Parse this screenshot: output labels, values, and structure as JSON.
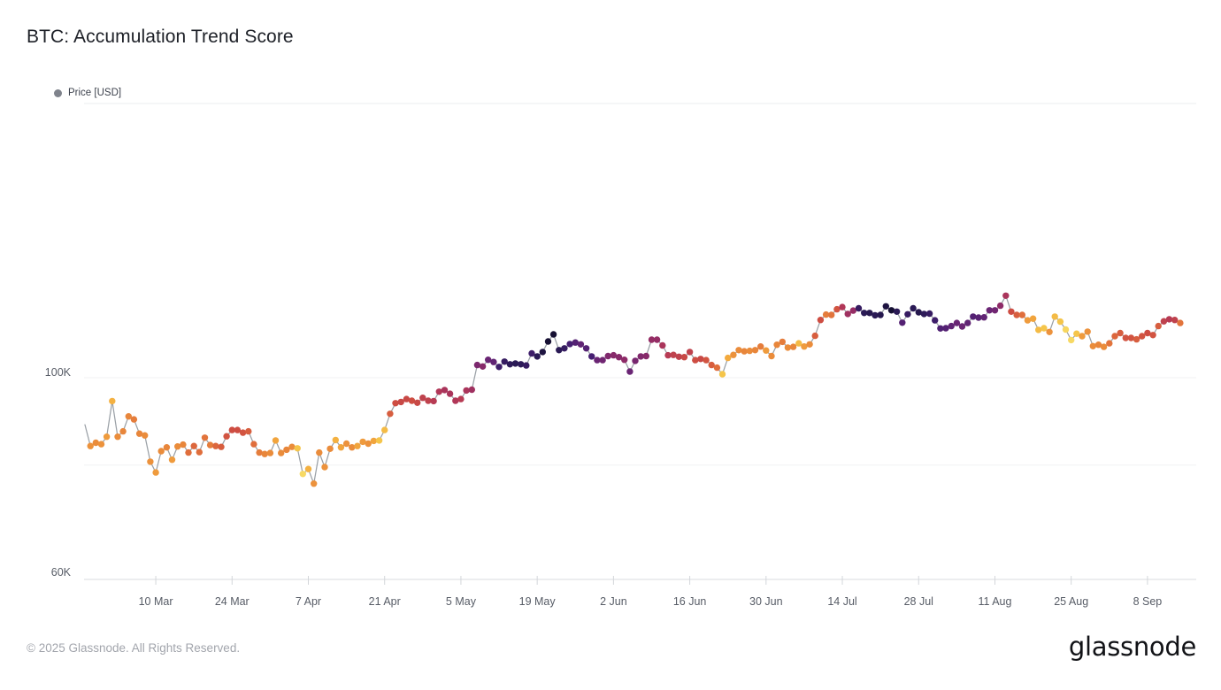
{
  "page": {
    "title": "BTC: Accumulation Trend Score",
    "footer": "© 2025 Glassnode. All Rights Reserved.",
    "brand": "glassnode"
  },
  "legend": {
    "label": "Price [USD]",
    "dot_color": "#7f838c"
  },
  "chart_data": {
    "type": "scatter",
    "title": "BTC: Accumulation Trend Score",
    "series_name": "Price [USD]",
    "y_scale": "log",
    "y_unit": "USD",
    "ylim_kusd": [
      57,
      132
    ],
    "grid": "horizontal-faint",
    "legend_position": "top-left",
    "start_date": "25 Feb 2025",
    "end_date": "14 Sep 2025",
    "y_ticks": [
      {
        "label": "100K",
        "value": 100
      },
      {
        "label": "60K",
        "value": 60
      }
    ],
    "gridline_values": [
      100,
      80
    ],
    "x_ticks": [
      {
        "label": "10 Mar",
        "i": 13
      },
      {
        "label": "24 Mar",
        "i": 27
      },
      {
        "label": "7 Apr",
        "i": 41
      },
      {
        "label": "21 Apr",
        "i": 55
      },
      {
        "label": "5 May",
        "i": 69
      },
      {
        "label": "19 May",
        "i": 83
      },
      {
        "label": "2 Jun",
        "i": 97
      },
      {
        "label": "16 Jun",
        "i": 111
      },
      {
        "label": "30 Jun",
        "i": 125
      },
      {
        "label": "14 Jul",
        "i": 139
      },
      {
        "label": "28 Jul",
        "i": 153
      },
      {
        "label": "11 Aug",
        "i": 167
      },
      {
        "label": "25 Aug",
        "i": 181
      },
      {
        "label": "8 Sep",
        "i": 195
      }
    ],
    "line_color": "#9aa0a6",
    "score_colormap": [
      [
        0.0,
        "#F9E57E"
      ],
      [
        0.06,
        "#F7D65F"
      ],
      [
        0.12,
        "#F5C54A"
      ],
      [
        0.2,
        "#F3AA3E"
      ],
      [
        0.3,
        "#EA8C3B"
      ],
      [
        0.4,
        "#E06E3C"
      ],
      [
        0.5,
        "#CE4D42"
      ],
      [
        0.6,
        "#B13758"
      ],
      [
        0.7,
        "#8E2B68"
      ],
      [
        0.8,
        "#6A2574"
      ],
      [
        0.88,
        "#461F72"
      ],
      [
        0.95,
        "#2A1A55"
      ],
      [
        1.0,
        "#161033"
      ]
    ],
    "prices_kusd": [
      88.7,
      84.0,
      84.7,
      84.4,
      86.0,
      94.2,
      86.0,
      87.2,
      90.6,
      89.9,
      86.7,
      86.3,
      80.7,
      78.5,
      82.9,
      83.7,
      81.1,
      83.9,
      84.3,
      82.6,
      84.0,
      82.7,
      85.8,
      84.2,
      84.0,
      83.8,
      86.1,
      87.5,
      87.5,
      86.9,
      87.2,
      84.4,
      82.6,
      82.3,
      82.5,
      85.2,
      82.5,
      83.2,
      83.8,
      83.5,
      78.2,
      79.2,
      76.3,
      82.6,
      79.6,
      83.4,
      85.3,
      83.7,
      84.5,
      83.7,
      84.0,
      84.9,
      84.5,
      85.1,
      85.2,
      87.5,
      91.2,
      93.7,
      94.0,
      94.7,
      94.3,
      93.8,
      95.0,
      94.3,
      94.2,
      96.5,
      96.9,
      96.0,
      94.3,
      94.7,
      96.8,
      97.0,
      103.3,
      102.9,
      104.7,
      104.1,
      102.8,
      104.2,
      103.5,
      103.7,
      103.5,
      103.2,
      106.4,
      105.6,
      106.8,
      109.7,
      111.7,
      107.3,
      107.8,
      109.0,
      109.4,
      108.9,
      107.8,
      105.6,
      104.6,
      104.6,
      105.7,
      105.9,
      105.4,
      104.7,
      101.6,
      104.4,
      105.6,
      105.7,
      110.2,
      110.2,
      108.6,
      105.9,
      106.0,
      105.5,
      105.4,
      106.8,
      104.6,
      104.9,
      104.6,
      103.3,
      102.6,
      100.9,
      105.2,
      106.0,
      107.3,
      107.0,
      107.1,
      107.3,
      108.3,
      107.2,
      105.7,
      108.8,
      109.6,
      108.0,
      108.2,
      109.2,
      108.3,
      108.9,
      111.3,
      115.9,
      117.5,
      117.4,
      119.1,
      119.8,
      117.7,
      118.7,
      119.4,
      118.0,
      118.0,
      117.3,
      117.4,
      120.0,
      118.8,
      118.4,
      115.1,
      117.6,
      119.4,
      118.2,
      117.7,
      117.8,
      115.8,
      113.4,
      113.5,
      114.1,
      115.0,
      114.0,
      115.0,
      116.9,
      116.6,
      116.7,
      118.8,
      118.8,
      120.2,
      123.3,
      118.4,
      117.4,
      117.4,
      115.8,
      116.3,
      113.0,
      113.5,
      112.4,
      116.9,
      115.4,
      113.1,
      110.1,
      111.9,
      111.2,
      112.5,
      108.4,
      108.8,
      108.2,
      109.2,
      111.2,
      112.1,
      110.7,
      110.7,
      110.3,
      111.2,
      112.1,
      111.5,
      114.1,
      115.5,
      116.1,
      115.9,
      115.0
    ],
    "scores": [
      0.3,
      0.28,
      0.3,
      0.28,
      0.25,
      0.18,
      0.3,
      0.32,
      0.32,
      0.35,
      0.32,
      0.3,
      0.28,
      0.25,
      0.3,
      0.32,
      0.25,
      0.3,
      0.32,
      0.4,
      0.42,
      0.4,
      0.38,
      0.35,
      0.42,
      0.45,
      0.48,
      0.5,
      0.5,
      0.48,
      0.45,
      0.4,
      0.35,
      0.32,
      0.3,
      0.22,
      0.3,
      0.32,
      0.3,
      0.12,
      0.05,
      0.18,
      0.28,
      0.3,
      0.28,
      0.3,
      0.18,
      0.22,
      0.28,
      0.3,
      0.22,
      0.25,
      0.28,
      0.22,
      0.12,
      0.15,
      0.45,
      0.5,
      0.52,
      0.52,
      0.5,
      0.52,
      0.55,
      0.55,
      0.58,
      0.6,
      0.62,
      0.62,
      0.6,
      0.58,
      0.62,
      0.65,
      0.75,
      0.72,
      0.8,
      0.82,
      0.9,
      0.92,
      0.94,
      0.95,
      0.94,
      0.92,
      0.9,
      0.95,
      0.98,
      1.0,
      1.0,
      0.95,
      0.92,
      0.88,
      0.85,
      0.82,
      0.85,
      0.88,
      0.8,
      0.78,
      0.74,
      0.72,
      0.72,
      0.7,
      0.8,
      0.76,
      0.74,
      0.72,
      0.68,
      0.68,
      0.62,
      0.58,
      0.55,
      0.55,
      0.52,
      0.55,
      0.5,
      0.52,
      0.48,
      0.45,
      0.4,
      0.12,
      0.2,
      0.28,
      0.3,
      0.32,
      0.3,
      0.32,
      0.35,
      0.25,
      0.3,
      0.32,
      0.35,
      0.3,
      0.32,
      0.15,
      0.25,
      0.3,
      0.45,
      0.5,
      0.35,
      0.38,
      0.48,
      0.6,
      0.65,
      0.68,
      0.92,
      0.95,
      0.96,
      0.95,
      0.96,
      0.98,
      1.0,
      0.95,
      0.85,
      0.92,
      0.95,
      0.96,
      0.94,
      0.92,
      0.9,
      0.86,
      0.85,
      0.82,
      0.8,
      0.8,
      0.82,
      0.85,
      0.84,
      0.82,
      0.8,
      0.78,
      0.7,
      0.62,
      0.5,
      0.45,
      0.4,
      0.25,
      0.22,
      0.15,
      0.12,
      0.28,
      0.15,
      0.12,
      0.06,
      0.05,
      0.12,
      0.25,
      0.28,
      0.3,
      0.32,
      0.3,
      0.38,
      0.42,
      0.45,
      0.48,
      0.48,
      0.45,
      0.48,
      0.5,
      0.48,
      0.45,
      0.55,
      0.58,
      0.55,
      0.38
    ]
  }
}
